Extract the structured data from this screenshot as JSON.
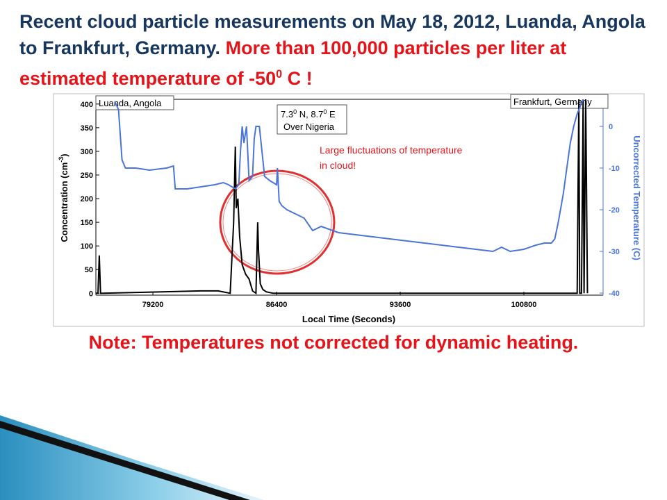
{
  "slide": {
    "title_part1": "Recent cloud particle measurements on May 18, 2012, Luanda, Angola to Frankfurt, Germany.",
    "title_part2": "More than 100,000 particles per liter at estimated temperature of -50",
    "title_sup": "0",
    "title_part3": " C !",
    "note": "Note: Temperatures not corrected for dynamic heating."
  },
  "chart_data": {
    "type": "line",
    "xlabel": "Local Time (Seconds)",
    "ylabel": "Concentration (cm",
    "ylabel_sup": "-3",
    "ylabel_end": ")",
    "y2label": "Uncorrected Temperature (C)",
    "xlim": [
      75880,
      105410
    ],
    "xticks": [
      79200,
      86400,
      93600,
      100800
    ],
    "ylim": [
      -4,
      410
    ],
    "yticks": [
      0,
      50,
      100,
      150,
      200,
      250,
      300,
      350,
      400
    ],
    "y2lim": [
      -40.5,
      6.5
    ],
    "y2ticks": [
      0,
      -10,
      -20,
      -30,
      -40
    ],
    "y2color": "#4a74d8",
    "annotations": {
      "start": "Luanda, Angola",
      "end": "Frankfurt, Germany",
      "nigeria_line1": [
        "7.3",
        "0",
        " N, 8.7",
        "0",
        " E"
      ],
      "nigeria_line2": "Over Nigeria",
      "fluctuations_line1": "Large fluctuations of temperature",
      "fluctuations_line2": "in cloud!"
    },
    "series": [
      {
        "color": "#000000",
        "axis": "y",
        "x": [
          75900,
          76000,
          76080,
          76150,
          76300,
          82000,
          83000,
          83700,
          83900,
          84000,
          84050,
          84150,
          84250,
          84400,
          84600,
          84800,
          85000,
          85200,
          85300,
          85350,
          85450,
          85600,
          85800,
          86200,
          86600,
          103900,
          104000,
          104050,
          104150,
          104250,
          104300,
          104400,
          104500
        ],
        "values": [
          0,
          0,
          80,
          0,
          0,
          5,
          5,
          0,
          150,
          310,
          180,
          200,
          120,
          60,
          40,
          30,
          5,
          0,
          150,
          90,
          20,
          8,
          3,
          0,
          0,
          0,
          410,
          0,
          0,
          410,
          0,
          410,
          0
        ]
      },
      {
        "color": "#4a74d8",
        "axis": "y2",
        "x": [
          76980,
          77200,
          77400,
          77600,
          78200,
          79000,
          80000,
          80400,
          80500,
          81200,
          82000,
          82800,
          83300,
          83600,
          84000,
          84200,
          84300,
          84400,
          84500,
          84650,
          84800,
          85000,
          85100,
          85200,
          85400,
          85600,
          85700,
          86000,
          86400,
          86450,
          86550,
          86700,
          87000,
          87500,
          88000,
          88500,
          89000,
          90000,
          91000,
          92000,
          93000,
          94000,
          95000,
          96000,
          97000,
          98000,
          99000,
          99500,
          100000,
          100800,
          101500,
          102000,
          102400,
          102600,
          102800,
          103100,
          103300,
          103500,
          103700,
          103900,
          104100,
          104300
        ],
        "values": [
          6,
          4,
          -8,
          -10,
          -10,
          -10.5,
          -10,
          -9.5,
          -15,
          -15,
          -14.5,
          -14,
          -13.5,
          -14,
          -15,
          -14,
          -6,
          0,
          -4,
          0,
          -13,
          -12,
          -3,
          0,
          0,
          -8,
          -12,
          -13,
          -14,
          -10,
          -18,
          -19,
          -20,
          -21,
          -22,
          -25,
          -24,
          -25.5,
          -26,
          -26.5,
          -27,
          -27.5,
          -28,
          -28.5,
          -29,
          -29.5,
          -30,
          -29,
          -30,
          -29.5,
          -28.5,
          -28,
          -28,
          -27,
          -23,
          -16,
          -10,
          -4,
          0,
          3,
          5,
          7
        ]
      }
    ]
  }
}
